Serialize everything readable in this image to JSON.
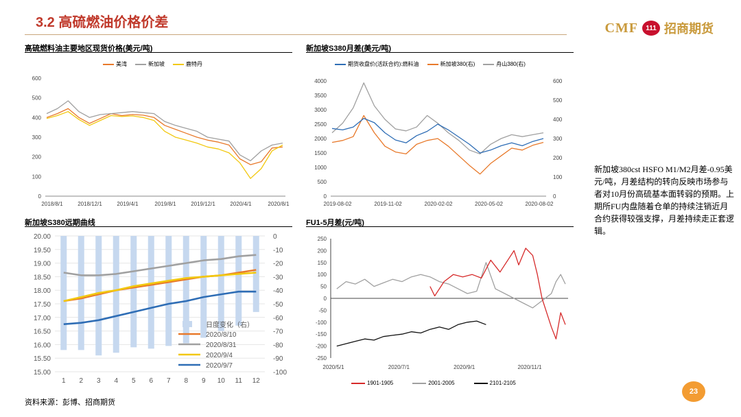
{
  "slide": {
    "title": "3.2 高硫燃油价格价差",
    "logo_text": "CMF",
    "logo_badge": "111",
    "logo_cn": "招商期货",
    "source": "资料来源：彭博、招商期货",
    "page_number": "23",
    "note": "新加坡380cst HSFO M1/M2月差-0.95美元/吨，月差结构的转向反映市场参与者对10月份高硫基本面转弱的预期。上期所FU内盘随着仓单的持续注销近月合约获得较强支撑，月差持续走正套逻辑。"
  },
  "colors": {
    "orange": "#e8792a",
    "gray": "#a0a0a0",
    "yellow": "#f2c80f",
    "blue": "#2e6db5",
    "red": "#d62a2a",
    "black": "#111111",
    "light_blue_bar": "#c6d8ef"
  },
  "chart_data": [
    {
      "id": "c1",
      "type": "line",
      "title": "高硫燃料油主要地区现货价格(美元/吨)",
      "y_ticks": [
        "600",
        "500",
        "400",
        "300",
        "200",
        "100",
        "0"
      ],
      "x_ticks": [
        "2018/8/1",
        "2018/12/1",
        "2019/4/1",
        "2019/8/1",
        "2019/12/1",
        "2020/4/1",
        "2020/8/1"
      ],
      "ylim": [
        0,
        600
      ],
      "series": [
        {
          "name": "美湾",
          "color": "orange",
          "values": [
            400,
            420,
            445,
            400,
            370,
            395,
            420,
            410,
            415,
            412,
            400,
            360,
            340,
            320,
            300,
            285,
            275,
            260,
            190,
            160,
            175,
            245,
            250
          ]
        },
        {
          "name": "新加坡",
          "color": "gray",
          "values": [
            420,
            445,
            485,
            430,
            400,
            415,
            420,
            425,
            430,
            425,
            420,
            380,
            360,
            345,
            330,
            300,
            290,
            280,
            210,
            180,
            230,
            260,
            270
          ]
        },
        {
          "name": "鹿特丹",
          "color": "yellow",
          "values": [
            395,
            410,
            430,
            390,
            360,
            385,
            410,
            405,
            408,
            400,
            385,
            330,
            300,
            285,
            270,
            250,
            240,
            220,
            170,
            90,
            140,
            230,
            260
          ]
        }
      ]
    },
    {
      "id": "c2",
      "type": "line",
      "title": "新加坡S380月差(美元/吨)",
      "y_left_ticks": [
        "4000",
        "3500",
        "3000",
        "2500",
        "2000",
        "1500",
        "1000",
        "500",
        "0"
      ],
      "y_right_ticks": [
        "600",
        "500",
        "400",
        "300",
        "200",
        "100",
        "0"
      ],
      "x_ticks": [
        "2019-08-02",
        "2019-11-02",
        "2020-02-02",
        "2020-05-02",
        "2020-08-02"
      ],
      "ylim_left": [
        0,
        4000
      ],
      "ylim_right": [
        0,
        600
      ],
      "series": [
        {
          "name": "期货收盘价(活跃合约):燃料油",
          "color": "blue",
          "axis": "left",
          "values": [
            2350,
            2300,
            2400,
            2700,
            2550,
            2200,
            1950,
            1850,
            2100,
            2250,
            2500,
            2300,
            2050,
            1800,
            1500,
            1600,
            1750,
            1850,
            1750,
            1900,
            2000
          ]
        },
        {
          "name": "新加坡380(右)",
          "color": "orange",
          "axis": "right",
          "values": [
            280,
            290,
            310,
            420,
            330,
            260,
            230,
            220,
            270,
            290,
            300,
            260,
            210,
            160,
            115,
            170,
            210,
            250,
            240,
            265,
            280
          ]
        },
        {
          "name": "舟山380(右)",
          "color": "gray",
          "axis": "right",
          "values": [
            330,
            380,
            460,
            590,
            470,
            400,
            350,
            340,
            360,
            420,
            380,
            330,
            290,
            240,
            220,
            270,
            300,
            320,
            310,
            320,
            330
          ]
        }
      ]
    },
    {
      "id": "c3",
      "type": "line",
      "title": "新加坡S380远期曲线",
      "y_left_ticks": [
        "20.00",
        "19.50",
        "19.00",
        "18.50",
        "18.00",
        "17.50",
        "17.00",
        "16.50",
        "16.00",
        "15.50",
        "15.00"
      ],
      "y_right_ticks": [
        "0",
        "-10",
        "-20",
        "-30",
        "-40",
        "-50",
        "-60",
        "-70",
        "-80",
        "-90",
        "-100"
      ],
      "categories": [
        "1",
        "2",
        "3",
        "4",
        "5",
        "6",
        "7",
        "8",
        "9",
        "10",
        "11",
        "12"
      ],
      "ylim_left": [
        15.0,
        20.0
      ],
      "ylim_right": [
        -100,
        0
      ],
      "bars": {
        "name": "日度变化（右）",
        "color": "light_blue_bar",
        "values": [
          -84,
          -84,
          -88,
          -86,
          -82,
          -83,
          -81,
          -79,
          -75,
          -70,
          -66,
          -56
        ]
      },
      "series": [
        {
          "name": "2020/8/10",
          "color": "orange",
          "values": [
            17.6,
            17.7,
            17.85,
            18.0,
            18.1,
            18.2,
            18.3,
            18.4,
            18.5,
            18.55,
            18.65,
            18.75
          ]
        },
        {
          "name": "2020/8/31",
          "color": "gray",
          "values": [
            18.65,
            18.55,
            18.55,
            18.6,
            18.7,
            18.8,
            18.9,
            19.0,
            19.1,
            19.15,
            19.25,
            19.3
          ]
        },
        {
          "name": "2020/9/4",
          "color": "yellow",
          "values": [
            17.6,
            17.75,
            17.9,
            18.0,
            18.15,
            18.25,
            18.35,
            18.45,
            18.5,
            18.55,
            18.6,
            18.65
          ]
        },
        {
          "name": "2020/9/7",
          "color": "blue",
          "values": [
            16.75,
            16.8,
            16.9,
            17.05,
            17.2,
            17.35,
            17.5,
            17.6,
            17.75,
            17.85,
            17.95,
            17.95
          ]
        }
      ]
    },
    {
      "id": "c4",
      "type": "line",
      "title": "FU1-5月差(元/吨)",
      "y_ticks": [
        "250",
        "200",
        "150",
        "100",
        "50",
        "0",
        "-50",
        "-100",
        "-150",
        "-200",
        "-250"
      ],
      "x_ticks": [
        "2020/5/1",
        "2020/7/1",
        "2020/9/1",
        "2020/11/1"
      ],
      "ylim": [
        -250,
        250
      ],
      "series": [
        {
          "name": "1901-1905",
          "color": "red",
          "x": [
            0.42,
            0.44,
            0.48,
            0.52,
            0.56,
            0.6,
            0.64,
            0.68,
            0.72,
            0.76,
            0.78,
            0.8,
            0.83,
            0.86,
            0.88,
            0.9,
            0.92,
            0.94,
            0.96,
            0.98,
            1.0
          ],
          "values": [
            50,
            10,
            70,
            100,
            90,
            100,
            85,
            160,
            110,
            170,
            200,
            140,
            210,
            180,
            100,
            0,
            -60,
            -120,
            -170,
            -60,
            -110
          ]
        },
        {
          "name": "2001-2005",
          "color": "gray",
          "x": [
            0.02,
            0.06,
            0.1,
            0.14,
            0.18,
            0.22,
            0.26,
            0.3,
            0.34,
            0.38,
            0.42,
            0.46,
            0.5,
            0.54,
            0.58,
            0.62,
            0.66,
            0.7,
            0.74,
            0.78,
            0.82,
            0.86,
            0.9,
            0.94,
            0.96,
            0.98,
            1.0
          ],
          "values": [
            40,
            70,
            60,
            80,
            50,
            65,
            80,
            70,
            90,
            100,
            90,
            70,
            60,
            40,
            20,
            30,
            150,
            40,
            20,
            0,
            -20,
            -40,
            -10,
            20,
            70,
            100,
            60
          ]
        },
        {
          "name": "2101-2105",
          "color": "black",
          "x": [
            0.02,
            0.06,
            0.1,
            0.14,
            0.18,
            0.22,
            0.26,
            0.3,
            0.34,
            0.38,
            0.42,
            0.46,
            0.5,
            0.54,
            0.58,
            0.62,
            0.66
          ],
          "values": [
            -200,
            -190,
            -180,
            -170,
            -175,
            -160,
            -155,
            -150,
            -140,
            -145,
            -130,
            -120,
            -130,
            -110,
            -100,
            -95,
            -110
          ]
        }
      ]
    }
  ]
}
